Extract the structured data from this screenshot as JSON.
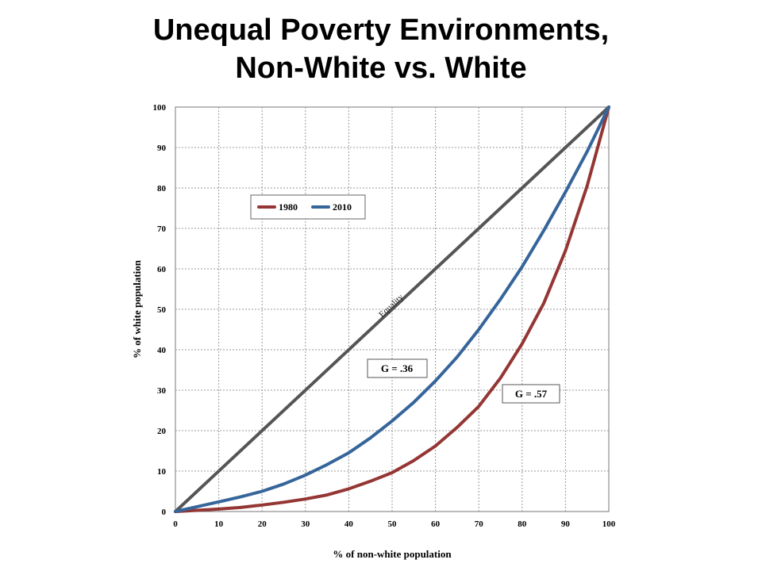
{
  "slide": {
    "title_line1": "Unequal Poverty Environments,",
    "title_line2": "Non-White vs. White"
  },
  "chart_data": {
    "type": "line",
    "xlabel": "% of non-white population",
    "ylabel": "% of white population",
    "xlim": [
      0,
      100
    ],
    "ylim": [
      0,
      100
    ],
    "xticks": [
      0,
      10,
      20,
      30,
      40,
      50,
      60,
      70,
      80,
      90,
      100
    ],
    "yticks": [
      0,
      10,
      20,
      30,
      40,
      50,
      60,
      70,
      80,
      90,
      100
    ],
    "grid": true,
    "legend_position": "top-left",
    "series": [
      {
        "name": "1980",
        "color": "#943634",
        "x": [
          0,
          5,
          10,
          15,
          20,
          25,
          30,
          35,
          40,
          45,
          50,
          55,
          60,
          65,
          70,
          75,
          80,
          85,
          90,
          95,
          100
        ],
        "y": [
          0,
          0.3,
          0.6,
          1.0,
          1.6,
          2.3,
          3.1,
          4.1,
          5.6,
          7.5,
          9.6,
          12.6,
          16.2,
          20.8,
          26.0,
          33.0,
          41.5,
          51.5,
          64.5,
          80.5,
          100
        ]
      },
      {
        "name": "2010",
        "color": "#35659a",
        "x": [
          0,
          5,
          10,
          15,
          20,
          25,
          30,
          35,
          40,
          45,
          50,
          55,
          60,
          65,
          70,
          75,
          80,
          85,
          90,
          95,
          100
        ],
        "y": [
          0,
          1.2,
          2.4,
          3.6,
          5.0,
          6.8,
          9.0,
          11.6,
          14.5,
          18.2,
          22.4,
          27.0,
          32.3,
          38.2,
          45.0,
          52.5,
          60.5,
          69.5,
          79.0,
          89.0,
          100
        ]
      },
      {
        "name": "Equality",
        "color": "#555555",
        "x": [
          0,
          100
        ],
        "y": [
          0,
          100
        ]
      }
    ],
    "annotations": [
      {
        "text": "G = .36",
        "x": 50,
        "y": 35
      },
      {
        "text": "G = .57",
        "x": 78,
        "y": 29
      },
      {
        "text": "Equality",
        "x": 50,
        "y": 50
      }
    ]
  }
}
